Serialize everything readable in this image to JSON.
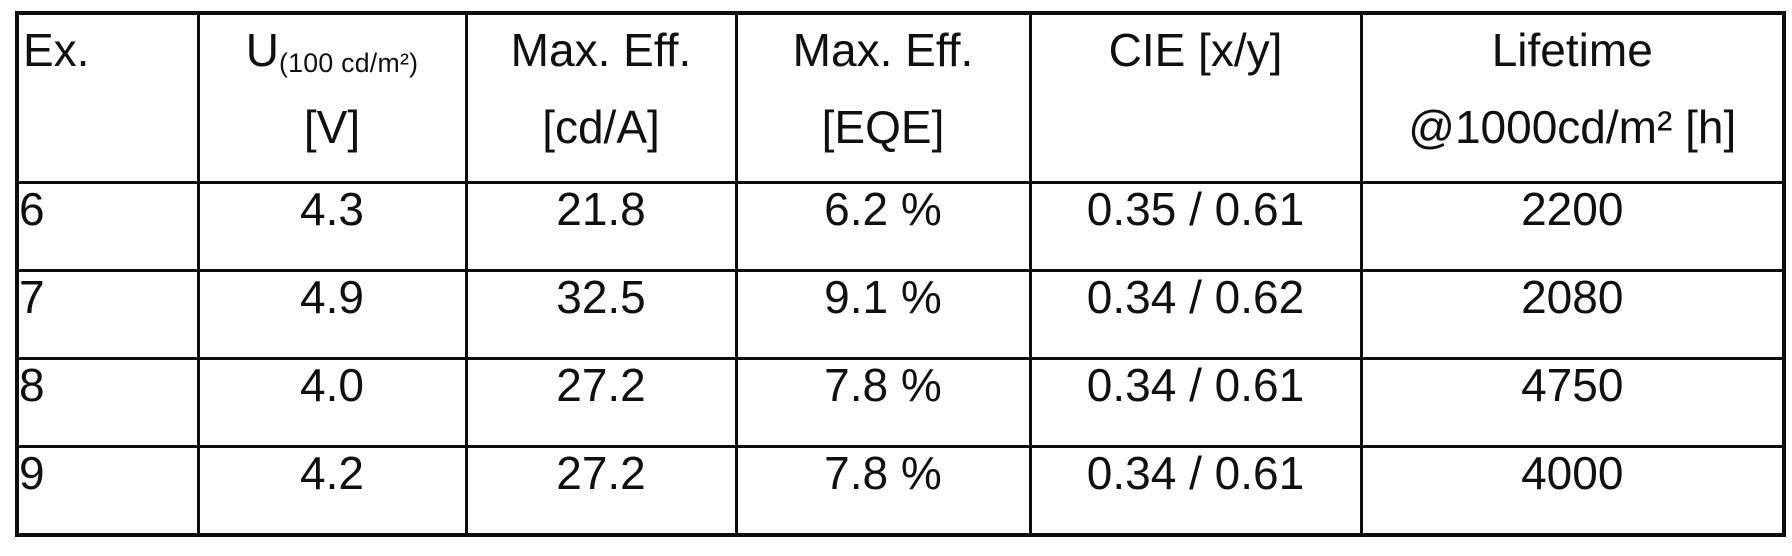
{
  "table": {
    "columns": [
      {
        "line1": "Ex.",
        "line2": ""
      },
      {
        "symbol": "U",
        "subscript": "(100 cd/m²)",
        "line2": "[V]"
      },
      {
        "line1": "Max. Eff.",
        "line2": "[cd/A]"
      },
      {
        "line1": "Max. Eff.",
        "line2": "[EQE]"
      },
      {
        "line1": "CIE [x/y]",
        "line2": ""
      },
      {
        "line1": "Lifetime",
        "line2": "@1000cd/m² [h]"
      }
    ],
    "rows": [
      [
        "6",
        "4.3",
        "21.8",
        "6.2 %",
        "0.35 / 0.61",
        "2200"
      ],
      [
        "7",
        "4.9",
        "32.5",
        "9.1 %",
        "0.34 / 0.62",
        "2080"
      ],
      [
        "8",
        "4.0",
        "27.2",
        "7.8 %",
        "0.34 / 0.61",
        "4750"
      ],
      [
        "9",
        "4.2",
        "27.2",
        "7.8 %",
        "0.34 / 0.61",
        "4000"
      ]
    ]
  },
  "colors": {
    "ink": "#101010",
    "paper": "#ffffff",
    "border": "#0d0d0d"
  }
}
